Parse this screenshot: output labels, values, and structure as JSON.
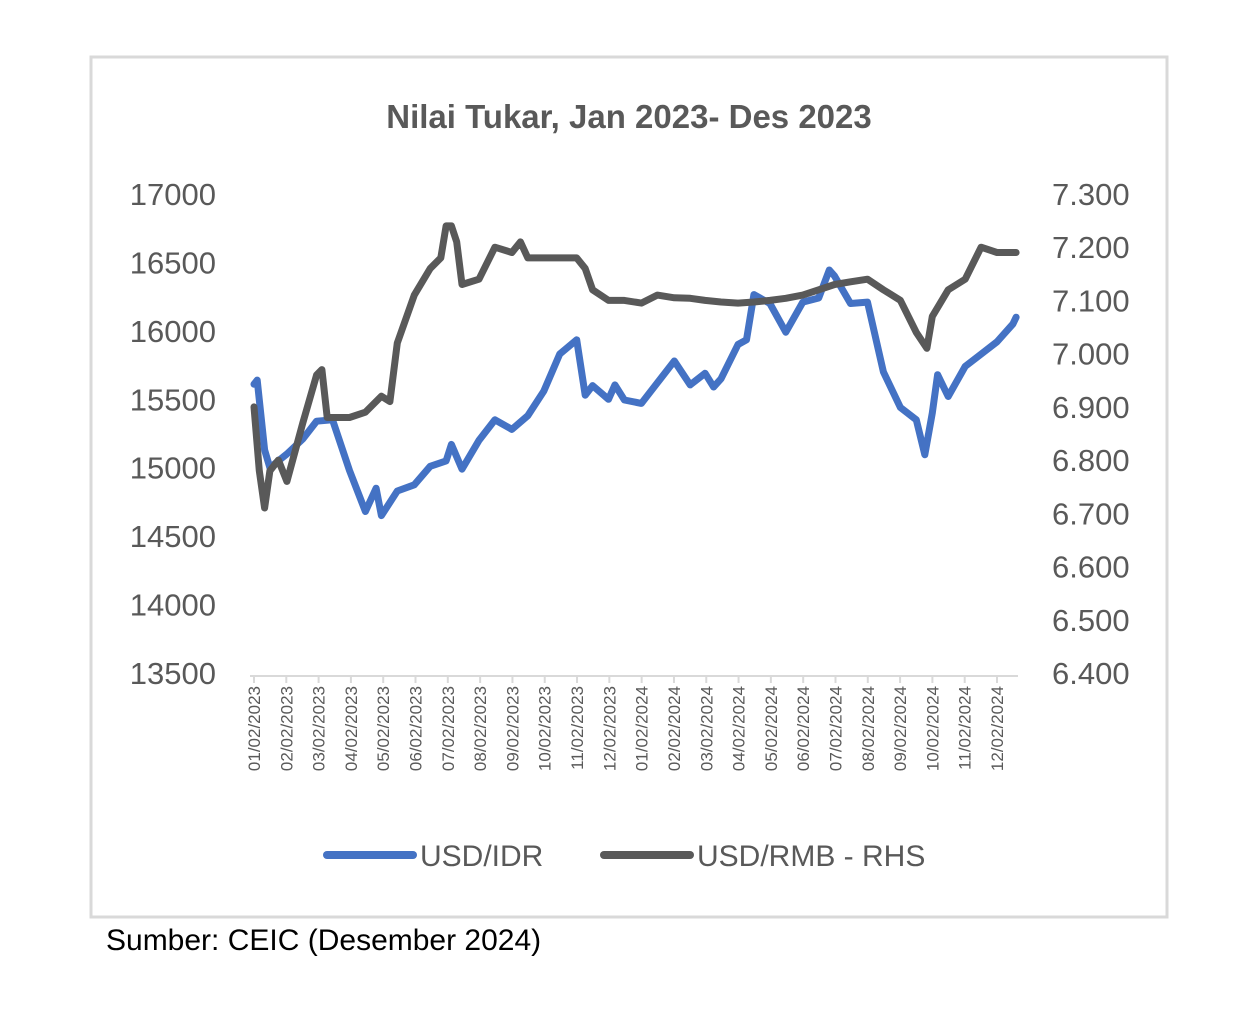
{
  "chart_data": {
    "type": "line",
    "title": "Nilai Tukar, Jan 2023- Des 2023",
    "source": "Sumber: CEIC (Desember 2024)",
    "y_left": {
      "min": 13500,
      "max": 17000,
      "step": 500,
      "ticks": [
        "17000",
        "16500",
        "16000",
        "15500",
        "15000",
        "14500",
        "14000",
        "13500"
      ]
    },
    "y_right": {
      "min": 6.4,
      "max": 7.3,
      "step": 0.1,
      "ticks": [
        "7.300",
        "7.200",
        "7.100",
        "7.000",
        "6.900",
        "6.800",
        "6.700",
        "6.600",
        "6.500",
        "6.400"
      ]
    },
    "x_ticks": [
      "01/02/2023",
      "02/02/2023",
      "03/02/2023",
      "04/02/2023",
      "05/02/2023",
      "06/02/2023",
      "07/02/2023",
      "08/02/2023",
      "09/02/2023",
      "10/02/2023",
      "11/02/2023",
      "12/02/2023",
      "01/02/2024",
      "02/02/2024",
      "03/02/2024",
      "04/02/2024",
      "05/02/2024",
      "06/02/2024",
      "07/02/2024",
      "08/02/2024",
      "09/02/2024",
      "10/02/2024",
      "11/02/2024",
      "12/02/2024"
    ],
    "grid": false,
    "legend_position": "bottom",
    "series": [
      {
        "name": "USD/IDR",
        "axis": "left",
        "color": "#4472C4",
        "points": [
          [
            "2023-01-02",
            15610
          ],
          [
            "2023-01-05",
            15640
          ],
          [
            "2023-01-12",
            15130
          ],
          [
            "2023-01-17",
            15000
          ],
          [
            "2023-02-02",
            15100
          ],
          [
            "2023-02-17",
            15210
          ],
          [
            "2023-03-02",
            15340
          ],
          [
            "2023-03-17",
            15350
          ],
          [
            "2023-04-02",
            14980
          ],
          [
            "2023-04-17",
            14680
          ],
          [
            "2023-04-27",
            14850
          ],
          [
            "2023-05-02",
            14650
          ],
          [
            "2023-05-17",
            14830
          ],
          [
            "2023-06-02",
            14875
          ],
          [
            "2023-06-17",
            15010
          ],
          [
            "2023-07-02",
            15050
          ],
          [
            "2023-07-07",
            15170
          ],
          [
            "2023-07-17",
            14990
          ],
          [
            "2023-08-02",
            15200
          ],
          [
            "2023-08-17",
            15350
          ],
          [
            "2023-09-02",
            15280
          ],
          [
            "2023-09-17",
            15380
          ],
          [
            "2023-10-02",
            15560
          ],
          [
            "2023-10-17",
            15830
          ],
          [
            "2023-11-02",
            15935
          ],
          [
            "2023-11-10",
            15530
          ],
          [
            "2023-11-17",
            15600
          ],
          [
            "2023-12-02",
            15500
          ],
          [
            "2023-12-08",
            15605
          ],
          [
            "2023-12-17",
            15495
          ],
          [
            "2024-01-02",
            15470
          ],
          [
            "2024-01-17",
            15620
          ],
          [
            "2024-02-02",
            15780
          ],
          [
            "2024-02-17",
            15605
          ],
          [
            "2024-03-02",
            15690
          ],
          [
            "2024-03-10",
            15590
          ],
          [
            "2024-03-17",
            15650
          ],
          [
            "2024-04-02",
            15900
          ],
          [
            "2024-04-10",
            15935
          ],
          [
            "2024-04-17",
            16265
          ],
          [
            "2024-05-02",
            16200
          ],
          [
            "2024-05-17",
            15990
          ],
          [
            "2024-06-02",
            16210
          ],
          [
            "2024-06-17",
            16240
          ],
          [
            "2024-06-27",
            16445
          ],
          [
            "2024-07-02",
            16400
          ],
          [
            "2024-07-17",
            16200
          ],
          [
            "2024-08-02",
            16210
          ],
          [
            "2024-08-17",
            15700
          ],
          [
            "2024-09-02",
            15440
          ],
          [
            "2024-09-17",
            15350
          ],
          [
            "2024-09-25",
            15095
          ],
          [
            "2024-10-02",
            15400
          ],
          [
            "2024-10-07",
            15680
          ],
          [
            "2024-10-17",
            15520
          ],
          [
            "2024-11-02",
            15740
          ],
          [
            "2024-11-17",
            15830
          ],
          [
            "2024-12-02",
            15920
          ],
          [
            "2024-12-17",
            16050
          ],
          [
            "2024-12-20",
            16100
          ]
        ]
      },
      {
        "name": "USD/RMB - RHS",
        "axis": "right",
        "color": "#595959",
        "points": [
          [
            "2023-01-02",
            6.9
          ],
          [
            "2023-01-07",
            6.78
          ],
          [
            "2023-01-12",
            6.71
          ],
          [
            "2023-01-17",
            6.78
          ],
          [
            "2023-01-25",
            6.8
          ],
          [
            "2023-02-02",
            6.76
          ],
          [
            "2023-02-17",
            6.87
          ],
          [
            "2023-03-02",
            6.96
          ],
          [
            "2023-03-07",
            6.97
          ],
          [
            "2023-03-12",
            6.88
          ],
          [
            "2023-03-17",
            6.88
          ],
          [
            "2023-04-02",
            6.88
          ],
          [
            "2023-04-17",
            6.89
          ],
          [
            "2023-05-02",
            6.92
          ],
          [
            "2023-05-10",
            6.91
          ],
          [
            "2023-05-17",
            7.02
          ],
          [
            "2023-06-02",
            7.11
          ],
          [
            "2023-06-17",
            7.16
          ],
          [
            "2023-06-27",
            7.18
          ],
          [
            "2023-07-02",
            7.24
          ],
          [
            "2023-07-07",
            7.24
          ],
          [
            "2023-07-12",
            7.21
          ],
          [
            "2023-07-17",
            7.13
          ],
          [
            "2023-08-02",
            7.14
          ],
          [
            "2023-08-17",
            7.2
          ],
          [
            "2023-09-02",
            7.19
          ],
          [
            "2023-09-10",
            7.21
          ],
          [
            "2023-09-17",
            7.18
          ],
          [
            "2023-10-02",
            7.18
          ],
          [
            "2023-10-17",
            7.18
          ],
          [
            "2023-11-02",
            7.18
          ],
          [
            "2023-11-10",
            7.16
          ],
          [
            "2023-11-17",
            7.12
          ],
          [
            "2023-12-02",
            7.1
          ],
          [
            "2023-12-17",
            7.1
          ],
          [
            "2024-01-02",
            7.095
          ],
          [
            "2024-01-17",
            7.11
          ],
          [
            "2024-02-02",
            7.105
          ],
          [
            "2024-02-17",
            7.104
          ],
          [
            "2024-03-02",
            7.1
          ],
          [
            "2024-03-17",
            7.097
          ],
          [
            "2024-04-02",
            7.095
          ],
          [
            "2024-04-17",
            7.097
          ],
          [
            "2024-05-02",
            7.1
          ],
          [
            "2024-05-17",
            7.104
          ],
          [
            "2024-06-02",
            7.11
          ],
          [
            "2024-06-17",
            7.12
          ],
          [
            "2024-07-02",
            7.13
          ],
          [
            "2024-07-17",
            7.135
          ],
          [
            "2024-08-02",
            7.14
          ],
          [
            "2024-08-17",
            7.12
          ],
          [
            "2024-09-02",
            7.1
          ],
          [
            "2024-09-17",
            7.04
          ],
          [
            "2024-09-27",
            7.01
          ],
          [
            "2024-10-02",
            7.07
          ],
          [
            "2024-10-17",
            7.12
          ],
          [
            "2024-11-02",
            7.14
          ],
          [
            "2024-11-17",
            7.2
          ],
          [
            "2024-12-02",
            7.19
          ],
          [
            "2024-12-17",
            7.19
          ],
          [
            "2024-12-20",
            7.19
          ]
        ]
      }
    ]
  }
}
